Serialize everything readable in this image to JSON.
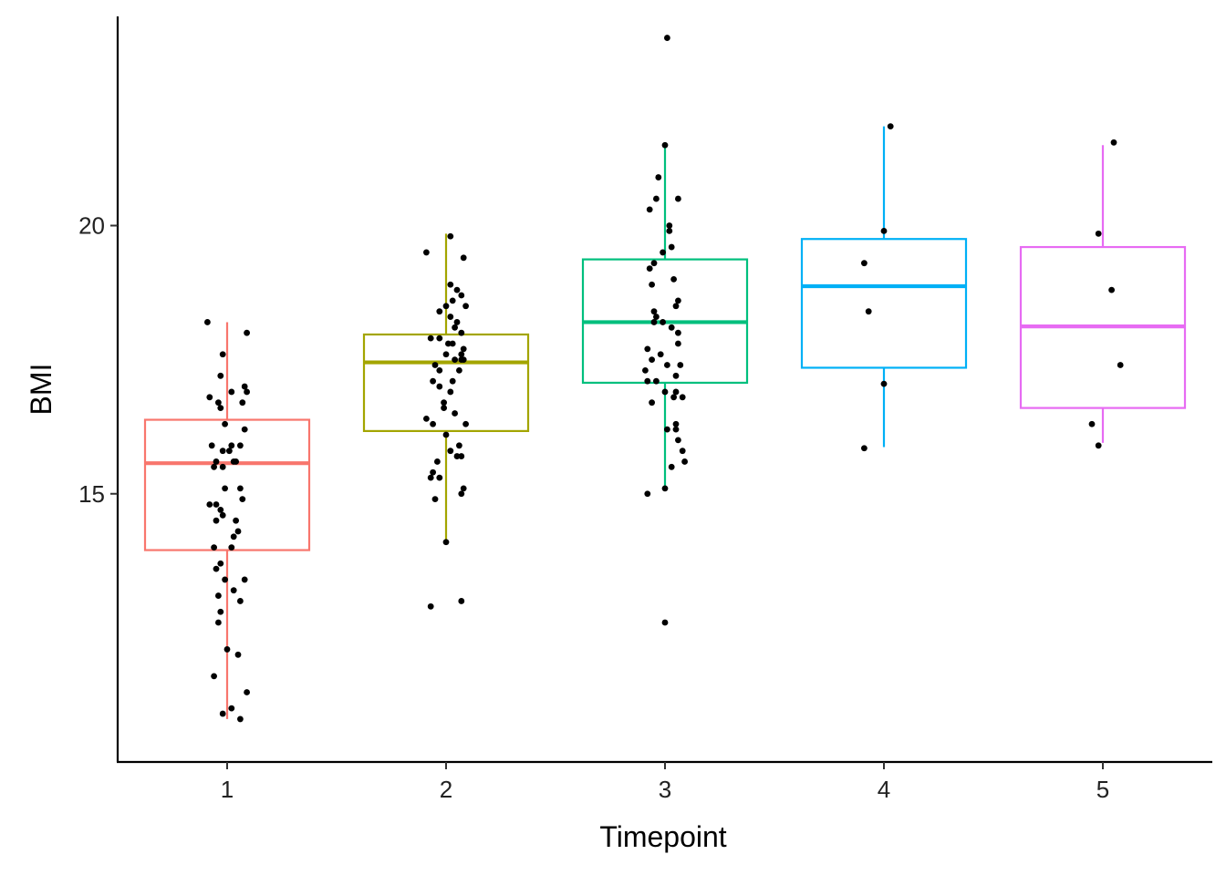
{
  "chart_data": {
    "type": "box",
    "title": "",
    "xlabel": "Timepoint",
    "ylabel": "BMI",
    "categories": [
      "1",
      "2",
      "3",
      "4",
      "5"
    ],
    "ylim": [
      10.0,
      23.9
    ],
    "yticks": [
      15,
      20
    ],
    "ytick_labels": [
      "15",
      "20"
    ],
    "grid": false,
    "legend": "none",
    "colors": [
      "#F8766D",
      "#A3A500",
      "#00BF7D",
      "#00B0F6",
      "#E76BF3"
    ],
    "point_color": "#000000",
    "boxes": [
      {
        "category": "1",
        "whisker_low": 10.8,
        "q1": 13.95,
        "median": 15.57,
        "q3": 16.38,
        "whisker_high": 18.2
      },
      {
        "category": "2",
        "whisker_low": 14.1,
        "q1": 16.17,
        "median": 17.45,
        "q3": 17.97,
        "whisker_high": 19.85
      },
      {
        "category": "3",
        "whisker_low": 15.05,
        "q1": 17.07,
        "median": 18.2,
        "q3": 19.37,
        "whisker_high": 21.55
      },
      {
        "category": "4",
        "whisker_low": 15.87,
        "q1": 17.35,
        "median": 18.87,
        "q3": 19.75,
        "whisker_high": 21.85
      },
      {
        "category": "5",
        "whisker_low": 15.95,
        "q1": 16.6,
        "median": 18.12,
        "q3": 19.6,
        "whisker_high": 21.5
      }
    ],
    "points": [
      {
        "category": "1",
        "x": [
          -0.09,
          0.09,
          -0.02,
          -0.03,
          0.08,
          0.09,
          0.02,
          -0.08,
          -0.04,
          0.07,
          -0.03,
          -0.01,
          0.08,
          0.06,
          -0.07,
          0.02,
          -0.02,
          0.01,
          0.04,
          0.03,
          -0.05,
          -0.06,
          -0.02,
          0.06,
          -0.01,
          0.07,
          -0.05,
          -0.08,
          -0.03,
          -0.02,
          0.04,
          -0.05,
          0.05,
          0.03,
          -0.06,
          0.02,
          -0.03,
          -0.05,
          -0.01,
          0.08,
          0.03,
          -0.04,
          0.06,
          -0.03,
          -0.04,
          0.0,
          0.05,
          -0.06,
          0.09,
          0.02,
          -0.02,
          0.06
        ],
        "y": [
          18.2,
          18.0,
          17.6,
          17.2,
          17.0,
          16.9,
          16.9,
          16.8,
          16.7,
          16.7,
          16.6,
          16.3,
          16.2,
          15.9,
          15.9,
          15.9,
          15.8,
          15.8,
          15.6,
          15.6,
          15.6,
          15.5,
          15.5,
          15.1,
          15.1,
          14.9,
          14.8,
          14.8,
          14.7,
          14.6,
          14.5,
          14.5,
          14.3,
          14.2,
          14.0,
          14.0,
          13.7,
          13.6,
          13.4,
          13.4,
          13.2,
          13.1,
          13.0,
          12.8,
          12.6,
          12.1,
          12.0,
          11.6,
          11.3,
          11.0,
          10.9,
          10.8
        ]
      },
      {
        "category": "2",
        "x": [
          0.02,
          -0.09,
          0.08,
          0.02,
          0.05,
          0.07,
          0.03,
          0.0,
          0.09,
          -0.03,
          0.02,
          0.05,
          0.04,
          0.07,
          -0.03,
          -0.07,
          0.01,
          0.03,
          0.08,
          0.0,
          0.07,
          0.08,
          0.04,
          0.07,
          -0.05,
          -0.03,
          0.06,
          0.03,
          -0.06,
          -0.03,
          0.02,
          -0.01,
          -0.01,
          0.04,
          -0.09,
          0.09,
          -0.06,
          0.0,
          0.06,
          0.02,
          0.07,
          0.05,
          -0.04,
          -0.06,
          -0.07,
          -0.03,
          0.08,
          0.07,
          -0.05,
          0.0,
          0.07,
          -0.07
        ],
        "y": [
          19.8,
          19.5,
          19.4,
          18.9,
          18.8,
          18.7,
          18.6,
          18.5,
          18.5,
          18.4,
          18.3,
          18.2,
          18.1,
          18.0,
          17.9,
          17.9,
          17.8,
          17.8,
          17.7,
          17.6,
          17.6,
          17.5,
          17.5,
          17.5,
          17.4,
          17.3,
          17.3,
          17.1,
          17.1,
          17.0,
          16.9,
          16.7,
          16.6,
          16.5,
          16.4,
          16.3,
          16.3,
          16.1,
          15.9,
          15.8,
          15.7,
          15.7,
          15.6,
          15.4,
          15.3,
          15.3,
          15.1,
          15.0,
          14.9,
          14.1,
          13.0,
          12.9
        ]
      },
      {
        "category": "3",
        "x": [
          0.01,
          0.0,
          -0.03,
          0.06,
          -0.04,
          -0.07,
          0.02,
          0.02,
          0.03,
          -0.01,
          -0.05,
          -0.07,
          0.04,
          -0.06,
          0.06,
          0.05,
          -0.05,
          -0.04,
          -0.01,
          -0.05,
          0.03,
          0.06,
          0.06,
          -0.08,
          -0.02,
          -0.06,
          0.01,
          0.07,
          -0.09,
          0.05,
          -0.08,
          -0.04,
          0.0,
          0.05,
          0.04,
          0.08,
          -0.06,
          0.05,
          0.05,
          0.01,
          0.06,
          0.08,
          0.09,
          0.03,
          0.0,
          -0.08,
          0.0
        ],
        "y": [
          23.5,
          21.5,
          20.9,
          20.5,
          20.5,
          20.3,
          20.0,
          19.9,
          19.6,
          19.5,
          19.3,
          19.2,
          19.0,
          18.9,
          18.6,
          18.5,
          18.4,
          18.3,
          18.2,
          18.2,
          18.1,
          18.0,
          17.8,
          17.7,
          17.6,
          17.5,
          17.4,
          17.4,
          17.3,
          17.2,
          17.1,
          17.1,
          16.9,
          16.9,
          16.8,
          16.8,
          16.7,
          16.3,
          16.2,
          16.2,
          16.0,
          15.8,
          15.6,
          15.5,
          15.1,
          15.0,
          12.6
        ]
      },
      {
        "category": "4",
        "x": [
          0.03,
          0.0,
          -0.09,
          -0.07,
          0.0,
          -0.09
        ],
        "y": [
          21.85,
          19.9,
          19.3,
          18.4,
          17.05,
          15.85
        ]
      },
      {
        "category": "5",
        "x": [
          0.05,
          -0.02,
          0.04,
          0.08,
          -0.05,
          -0.02
        ],
        "y": [
          21.55,
          19.85,
          18.8,
          17.4,
          16.3,
          15.9
        ]
      }
    ]
  }
}
